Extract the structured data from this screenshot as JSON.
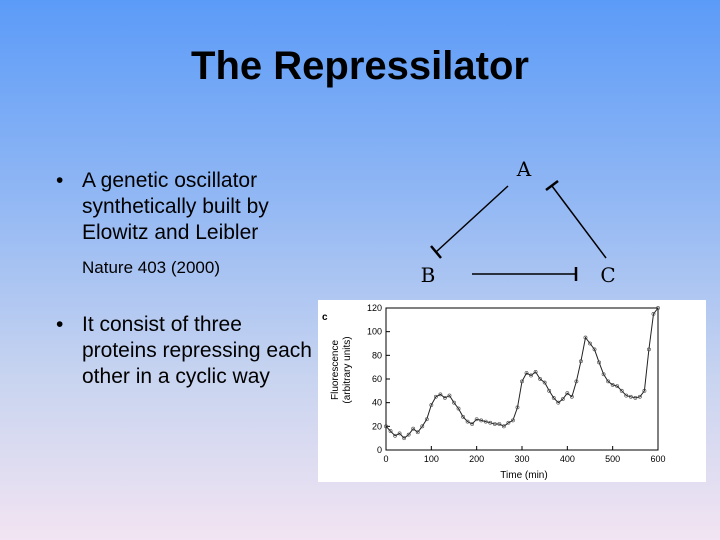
{
  "slide": {
    "title": "The Repressilator",
    "bullets": [
      {
        "text": "A genetic oscillator synthetically built by Elowitz and Leibler",
        "reference": "Nature 403 (2000)"
      },
      {
        "text": "It consist of three proteins repressing each other in a cyclic way"
      }
    ],
    "bullet_glyph": "•"
  },
  "diagram": {
    "nodes": {
      "a": "A",
      "b": "B",
      "c": "C"
    }
  },
  "chart_data": {
    "type": "line",
    "panel_label": "c",
    "xlabel": "Time (min)",
    "ylabel_line1": "Fluorescence",
    "ylabel_line2": "(arbitrary units)",
    "xlim": [
      0,
      600
    ],
    "ylim": [
      0,
      120
    ],
    "xticks": [
      0,
      100,
      200,
      300,
      400,
      500,
      600
    ],
    "yticks": [
      0,
      20,
      40,
      60,
      80,
      100,
      120
    ],
    "x": [
      0,
      10,
      20,
      30,
      40,
      50,
      60,
      70,
      80,
      90,
      100,
      110,
      120,
      130,
      140,
      150,
      160,
      170,
      180,
      190,
      200,
      210,
      220,
      230,
      240,
      250,
      260,
      270,
      280,
      290,
      300,
      310,
      320,
      330,
      340,
      350,
      360,
      370,
      380,
      390,
      400,
      410,
      420,
      430,
      440,
      450,
      460,
      470,
      480,
      490,
      500,
      510,
      520,
      530,
      540,
      550,
      560,
      570,
      580,
      590,
      600
    ],
    "y": [
      20,
      16,
      12,
      14,
      10,
      13,
      18,
      15,
      20,
      26,
      38,
      45,
      47,
      44,
      46,
      40,
      35,
      28,
      24,
      22,
      26,
      25,
      24,
      23,
      22,
      22,
      20,
      23,
      25,
      36,
      58,
      65,
      63,
      66,
      60,
      57,
      50,
      44,
      40,
      43,
      48,
      45,
      58,
      75,
      95,
      90,
      85,
      74,
      64,
      58,
      55,
      54,
      50,
      46,
      45,
      44,
      45,
      50,
      85,
      115,
      120
    ]
  }
}
